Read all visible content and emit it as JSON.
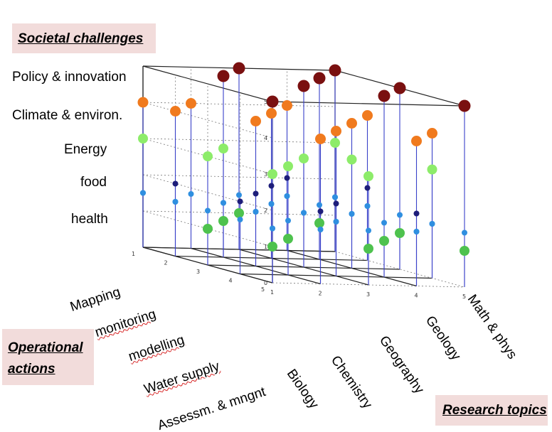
{
  "chart_data": {
    "type": "scatter",
    "z_axis": {
      "ticks": [
        0,
        1,
        2,
        3,
        4,
        5
      ],
      "labels": [
        "health",
        "food",
        "Energy",
        "Climate & environ.",
        "Policy & innovation"
      ]
    },
    "y_axis": {
      "ticks": [
        1,
        2,
        3,
        4,
        5
      ],
      "labels": [
        "Mapping",
        "monitoring",
        "modelling",
        "Water supply",
        "Assessm. & mngnt"
      ]
    },
    "x_axis": {
      "ticks": [
        1,
        2,
        3,
        4,
        5
      ],
      "labels": [
        "Biology",
        "Chemistry",
        "Geography",
        "Geology",
        "Math & phys"
      ]
    },
    "grid": true,
    "color_key": {
      "1": "#4ec24e",
      "2": "#1d1d7a",
      "3": "#8dec6a",
      "4": "#f07a1e",
      "5": "#7a1010",
      "1.5": "#2f8fe0"
    },
    "points": [
      [
        1,
        1,
        3
      ],
      [
        1,
        1,
        4
      ],
      [
        1,
        2,
        2
      ],
      [
        1,
        2,
        4
      ],
      [
        1,
        3,
        1
      ],
      [
        1,
        3,
        3
      ],
      [
        1,
        4,
        2
      ],
      [
        1,
        5,
        1
      ],
      [
        1,
        5,
        3
      ],
      [
        1,
        5,
        5
      ],
      [
        2,
        1,
        4
      ],
      [
        2,
        2,
        1
      ],
      [
        2,
        2,
        3
      ],
      [
        2,
        2,
        5
      ],
      [
        2,
        3,
        2
      ],
      [
        2,
        3,
        4
      ],
      [
        2,
        4,
        1
      ],
      [
        2,
        4,
        3
      ],
      [
        2,
        5,
        2
      ],
      [
        2,
        5,
        4
      ],
      [
        3,
        1,
        1
      ],
      [
        3,
        1,
        5
      ],
      [
        3,
        2,
        2
      ],
      [
        3,
        2,
        4
      ],
      [
        3,
        3,
        3
      ],
      [
        3,
        3,
        5
      ],
      [
        3,
        4,
        2
      ],
      [
        3,
        4,
        4
      ],
      [
        3,
        5,
        1
      ],
      [
        3,
        5,
        3
      ],
      [
        4,
        1,
        2
      ],
      [
        4,
        1,
        4
      ],
      [
        4,
        2,
        1
      ],
      [
        4,
        2,
        5
      ],
      [
        4,
        3,
        3
      ],
      [
        4,
        3,
        4
      ],
      [
        4,
        4,
        1
      ],
      [
        4,
        4,
        5
      ],
      [
        4,
        5,
        2
      ],
      [
        4,
        5,
        4
      ],
      [
        5,
        1,
        3
      ],
      [
        5,
        1,
        5
      ],
      [
        5,
        2,
        2
      ],
      [
        5,
        2,
        4
      ],
      [
        5,
        3,
        1
      ],
      [
        5,
        3,
        5
      ],
      [
        5,
        4,
        3
      ],
      [
        5,
        4,
        4
      ],
      [
        5,
        5,
        1
      ],
      [
        5,
        5,
        5
      ]
    ]
  },
  "callouts": {
    "societal": "Societal challenges",
    "operational": "Operational actions",
    "research": "Research topics"
  }
}
